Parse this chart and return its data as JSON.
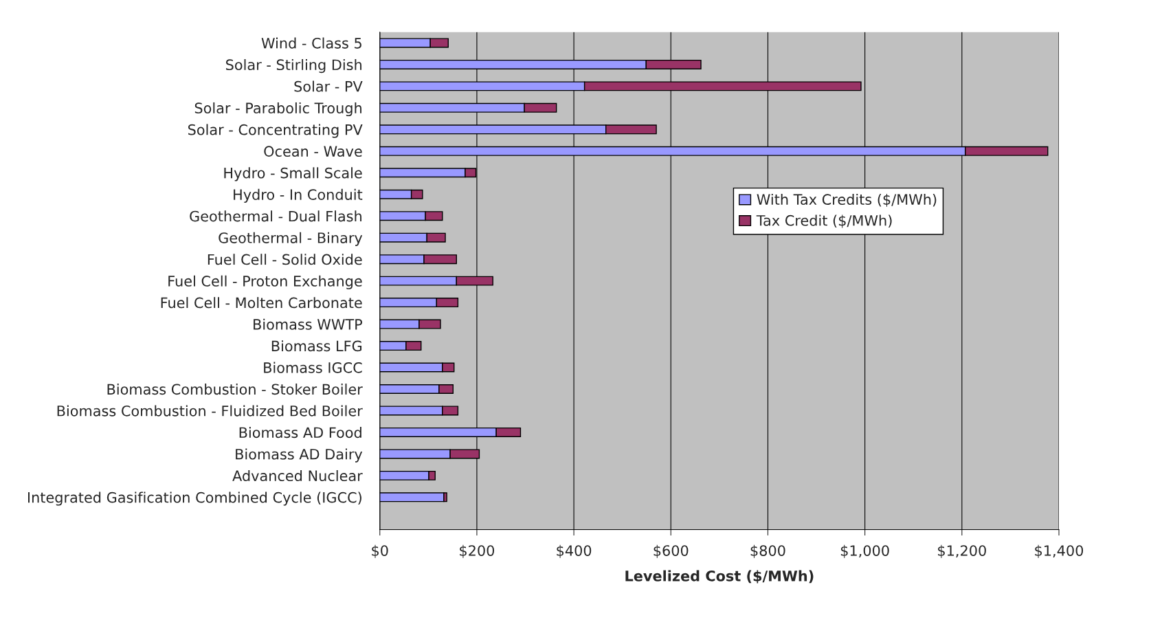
{
  "chart_data": {
    "type": "bar",
    "orientation": "horizontal",
    "stacked": true,
    "xlabel": "Levelized Cost ($/MWh)",
    "categories": [
      "Wind - Class 5",
      "Solar - Stirling Dish",
      "Solar - PV",
      "Solar - Parabolic Trough",
      "Solar - Concentrating PV",
      "Ocean - Wave",
      "Hydro - Small Scale",
      "Hydro - In Conduit",
      "Geothermal - Dual Flash",
      "Geothermal - Binary",
      "Fuel Cell - Solid Oxide",
      "Fuel Cell - Proton Exchange",
      "Fuel Cell - Molten Carbonate",
      "Biomass WWTP",
      "Biomass LFG",
      "Biomass IGCC",
      "Biomass Combustion - Stoker Boiler",
      "Biomass Combustion - Fluidized Bed Boiler",
      "Biomass AD Food",
      "Biomass AD Dairy",
      "Advanced Nuclear",
      "Integrated Gasification Combined Cycle (IGCC)"
    ],
    "series": [
      {
        "name": "With Tax Credits ($/MWh)",
        "color": "#9999ff",
        "values": [
          104,
          549,
          422,
          298,
          466,
          1207,
          176,
          65,
          94,
          97,
          91,
          158,
          117,
          81,
          54,
          129,
          122,
          129,
          240,
          145,
          101,
          132
        ]
      },
      {
        "name": "Tax Credit ($/MWh)",
        "color": "#993366",
        "values": [
          37,
          113,
          570,
          66,
          104,
          170,
          22,
          23,
          35,
          38,
          67,
          75,
          44,
          44,
          31,
          24,
          29,
          32,
          50,
          60,
          13,
          6
        ]
      }
    ],
    "xlim": [
      0,
      1400
    ],
    "xticks": [
      {
        "value": 0,
        "label": "$0"
      },
      {
        "value": 200,
        "label": "$200"
      },
      {
        "value": 400,
        "label": "$400"
      },
      {
        "value": 600,
        "label": "$600"
      },
      {
        "value": 800,
        "label": "$800"
      },
      {
        "value": 1000,
        "label": "$1,000"
      },
      {
        "value": 1200,
        "label": "$1,200"
      },
      {
        "value": 1400,
        "label": "$1,400"
      }
    ],
    "grid": "x",
    "legend": "right"
  }
}
